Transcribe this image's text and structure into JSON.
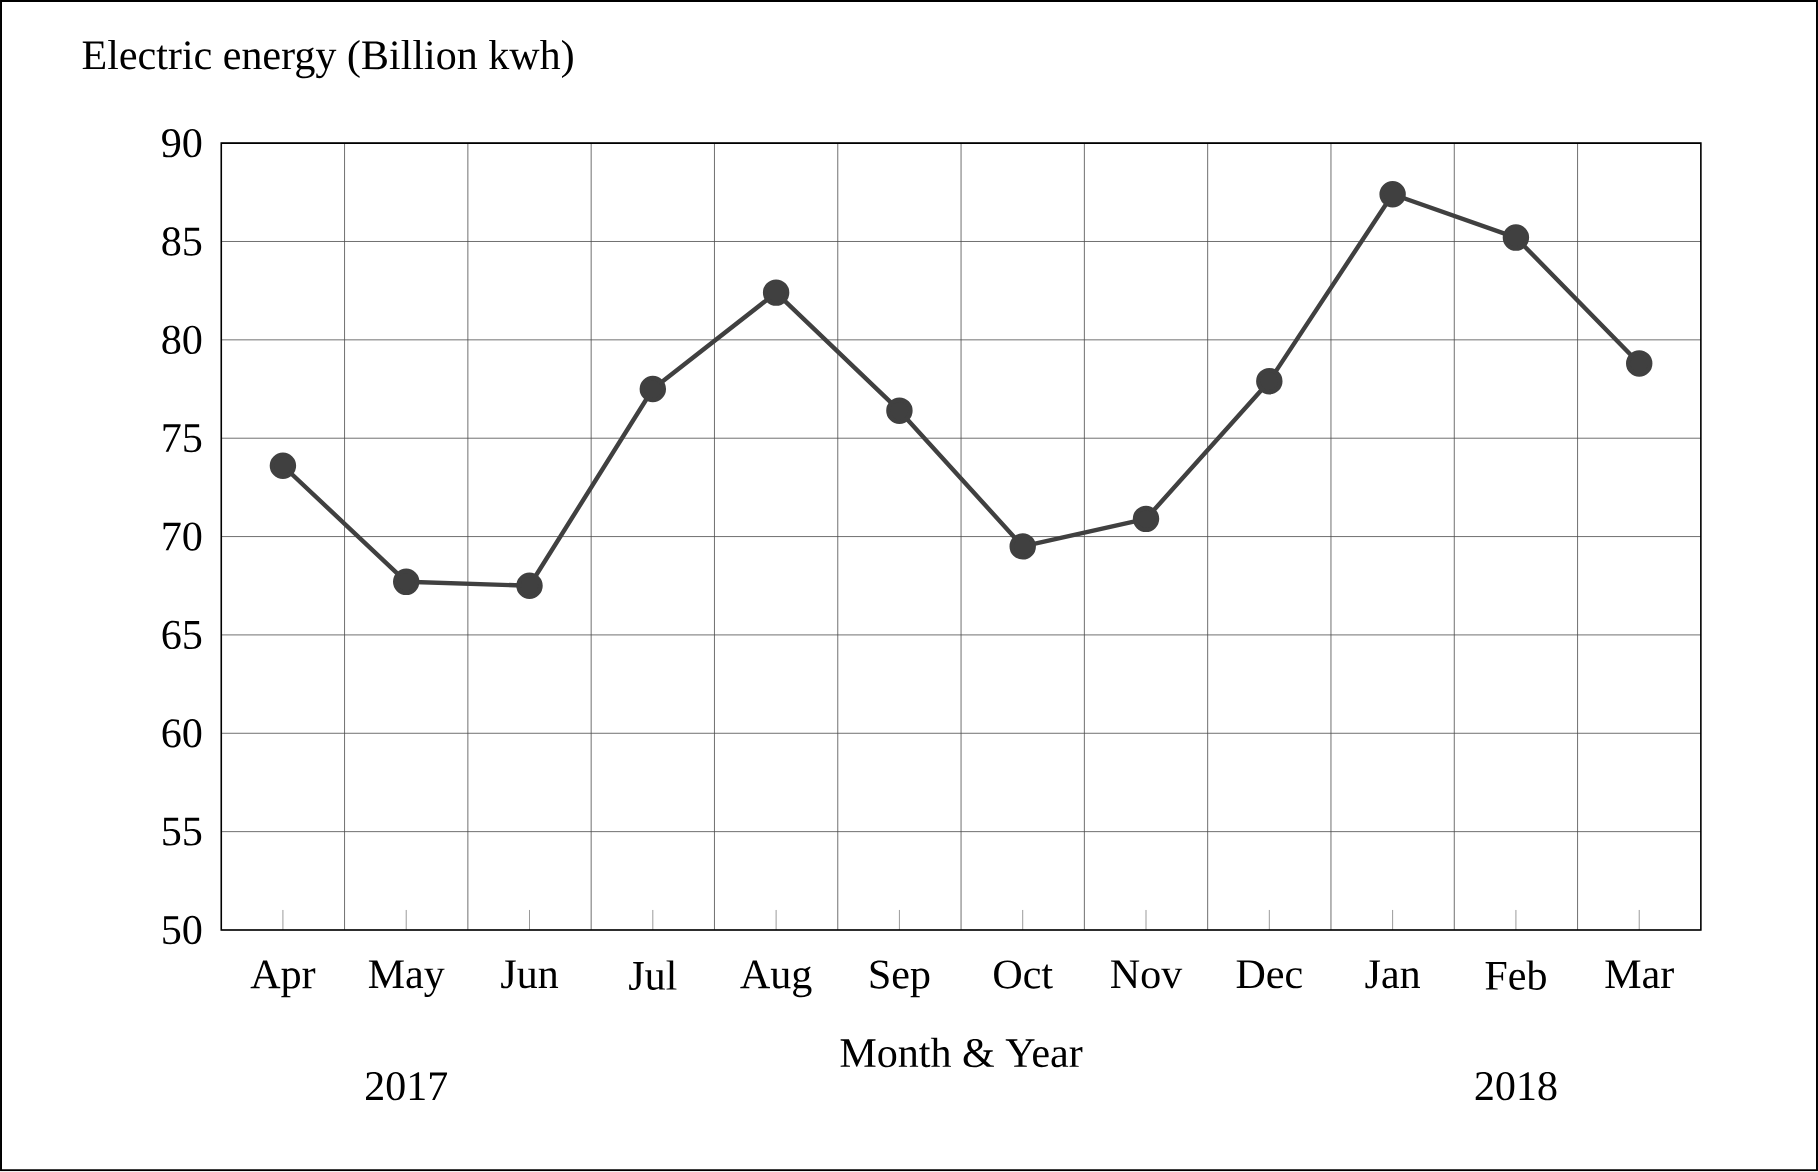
{
  "chart_data": {
    "type": "line",
    "title": "Electric energy (Billion kwh)",
    "xlabel": "Month & Year",
    "categories": [
      "Apr",
      "May",
      "Jun",
      "Jul",
      "Aug",
      "Sep",
      "Oct",
      "Nov",
      "Dec",
      "Jan",
      "Feb",
      "Mar"
    ],
    "values": [
      73.6,
      67.7,
      67.5,
      77.5,
      82.4,
      76.4,
      69.5,
      70.9,
      77.9,
      87.4,
      85.2,
      78.8
    ],
    "color": "#404040",
    "marker": "circle",
    "line_style": "solid",
    "ylim": [
      50,
      90
    ],
    "yticks": [
      50,
      55,
      60,
      65,
      70,
      75,
      80,
      85,
      90
    ],
    "grid": true,
    "annotations": [
      "2017",
      "2018"
    ]
  }
}
